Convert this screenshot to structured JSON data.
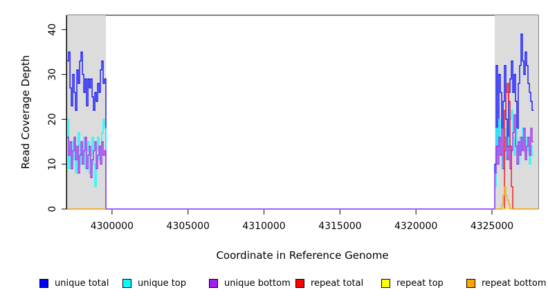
{
  "chart_data": {
    "type": "line",
    "step": true,
    "title": "",
    "xlabel": "Coordinate in Reference Genome",
    "ylabel": "Read Coverage Depth",
    "xlim": [
      4297045,
      4328050
    ],
    "ylim": [
      0,
      43.2
    ],
    "xticks": [
      4300000,
      4305000,
      4310000,
      4315000,
      4320000,
      4325000
    ],
    "yticks": [
      0,
      10,
      20,
      30,
      40
    ],
    "grid": false,
    "legend_position": "bottom",
    "shade_color": "#dcdcdc",
    "box_color": "#000000",
    "shaded_regions": [
      {
        "x0": 4297045,
        "x1": 4299595
      },
      {
        "x0": 4325185,
        "x1": 4328050
      }
    ],
    "series": [
      {
        "name": "unique total",
        "color": "#0000ff",
        "paths": [
          [
            {
              "start": 4297050,
              "step": 91,
              "values": [
                33,
                35,
                27,
                23,
                30,
                26,
                22,
                31,
                28,
                33,
                35,
                30,
                26,
                29,
                23,
                29,
                27,
                29,
                25,
                22,
                26,
                24,
                28,
                26,
                31,
                33,
                28,
                29
              ],
              "end": 4299595
            },
            {
              "start": 4299595,
              "step": 1,
              "values": [
                0
              ],
              "end": 4325185
            },
            {
              "start": 4325185,
              "step": 91,
              "values": [
                10,
                32,
                14,
                30,
                26,
                18,
                24,
                32,
                20,
                14,
                26,
                29,
                33,
                26,
                30,
                24,
                18,
                28,
                32,
                39,
                33,
                30,
                35,
                32,
                28,
                26,
                24,
                22
              ],
              "end": 4327740
            }
          ]
        ]
      },
      {
        "name": "unique top",
        "color": "#00ffff",
        "paths": [
          [
            {
              "start": 4297050,
              "step": 91,
              "values": [
                20,
                9,
                13,
                15,
                11,
                16,
                8,
                13,
                17,
                10,
                14,
                12,
                16,
                9,
                13,
                15,
                8,
                12,
                16,
                10,
                5,
                13,
                16,
                11,
                14,
                17,
                20,
                18
              ],
              "end": 4299595
            },
            {
              "start": 4299595,
              "step": 1,
              "values": [
                0
              ],
              "end": 4325185
            },
            {
              "start": 4325185,
              "step": 91,
              "values": [
                5,
                18,
                12,
                20,
                15,
                9,
                14,
                18,
                11,
                16,
                13,
                20,
                22,
                16,
                12,
                18,
                14,
                10,
                16,
                13,
                18,
                15,
                12,
                16,
                13,
                10,
                14,
                12
              ],
              "end": 4327740
            }
          ]
        ]
      },
      {
        "name": "unique bottom",
        "color": "#a020f0",
        "paths": [
          [
            {
              "start": 4297050,
              "step": 91,
              "values": [
                16,
                12,
                15,
                9,
                13,
                16,
                11,
                14,
                8,
                12,
                15,
                10,
                13,
                16,
                9,
                12,
                14,
                7,
                11,
                13,
                15,
                9,
                12,
                14,
                10,
                15,
                12,
                13
              ],
              "end": 4299595
            },
            {
              "start": 4299595,
              "step": 1,
              "values": [
                0
              ],
              "end": 4325185
            },
            {
              "start": 4325185,
              "step": 91,
              "values": [
                8,
                14,
                10,
                16,
                12,
                18,
                9,
                13,
                16,
                11,
                14,
                9,
                13,
                17,
                21,
                14,
                10,
                15,
                12,
                16,
                13,
                18,
                11,
                14,
                16,
                12,
                18,
                15
              ],
              "end": 4327740
            }
          ]
        ]
      },
      {
        "name": "repeat total",
        "color": "#ff0000",
        "paths": [
          [
            {
              "start": 4297045,
              "step": 91,
              "values": [
                0
              ],
              "end": 4299595
            }
          ],
          [
            {
              "start": 4325185,
              "step": 91,
              "values": [
                0,
                0,
                0,
                0,
                0,
                0,
                0,
                22,
                26,
                28,
                24,
                14,
                5,
                0,
                0,
                0,
                0,
                0,
                0,
                0,
                0,
                0,
                0,
                0,
                0,
                0,
                0,
                0
              ],
              "end": 4328050
            }
          ]
        ]
      },
      {
        "name": "repeat top",
        "color": "#ffff00",
        "paths": [
          [
            {
              "start": 4297045,
              "step": 91,
              "values": [
                0
              ],
              "end": 4299595
            }
          ],
          [
            {
              "start": 4325185,
              "step": 91,
              "values": [
                0
              ],
              "end": 4328050
            }
          ]
        ]
      },
      {
        "name": "repeat bottom",
        "color": "#ffa500",
        "paths": [
          [
            {
              "start": 4297045,
              "step": 91,
              "values": [
                0
              ],
              "end": 4299595
            }
          ],
          [
            {
              "start": 4325185,
              "step": 91,
              "values": [
                0,
                0,
                0,
                0,
                0,
                1,
                3,
                5,
                3,
                2,
                1,
                0,
                0,
                0,
                0,
                0,
                0,
                0,
                0,
                0,
                0,
                0,
                0,
                0,
                0,
                0,
                0,
                0
              ],
              "end": 4328050
            }
          ]
        ]
      }
    ]
  }
}
